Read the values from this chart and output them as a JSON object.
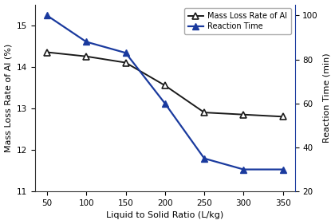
{
  "x": [
    50,
    100,
    150,
    200,
    250,
    300,
    350
  ],
  "mass_loss_rate": [
    14.35,
    14.25,
    14.1,
    13.55,
    12.9,
    12.85,
    12.8
  ],
  "reaction_time": [
    100,
    88,
    83,
    60,
    35,
    30,
    30
  ],
  "xlabel": "Liquid to Solid Ratio (L/kg)",
  "ylabel_left": "Mass Loss Rate of Al (%)",
  "ylabel_right": "Reaction Time (min)",
  "ylim_left": [
    11,
    15.5
  ],
  "ylim_right": [
    20,
    105
  ],
  "yticks_left": [
    11,
    12,
    13,
    14,
    15
  ],
  "yticks_right": [
    20,
    40,
    60,
    80,
    100
  ],
  "xticks": [
    50,
    100,
    150,
    200,
    250,
    300,
    350
  ],
  "legend_mass": "Mass Loss Rate of Al",
  "legend_time": "Reaction Time",
  "line_color_mass": "#1a1a1a",
  "line_color_time": "#1a3a9e",
  "spine_color_right": "#1a3a9e",
  "bg_color": "#ffffff"
}
